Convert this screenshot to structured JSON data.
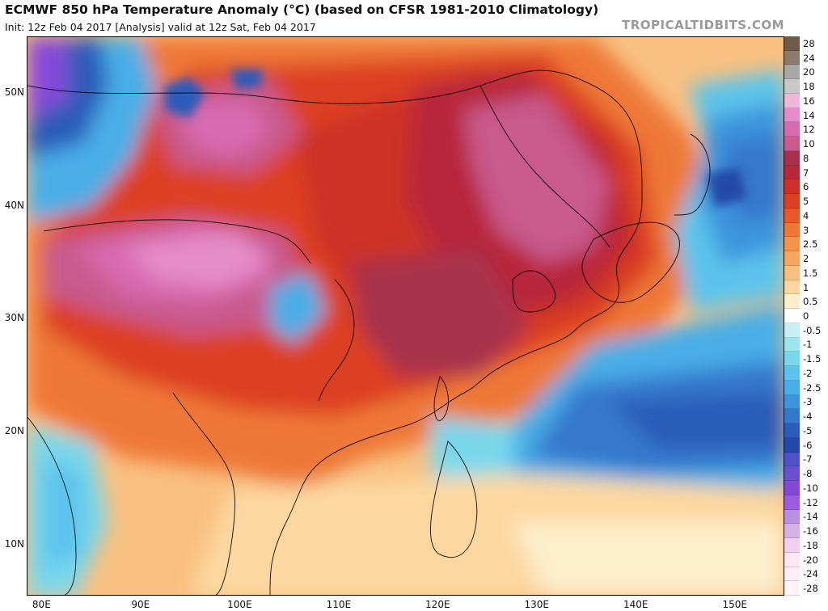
{
  "header": {
    "title": "ECMWF 850 hPa Temperature Anomaly (°C) (based on CFSR 1981-2010 Climatology)",
    "subtitle": "Init: 12z Feb 04 2017   [Analysis]   valid at 12z Sat, Feb 04 2017",
    "brand": "TROPICALTIDBITS.COM"
  },
  "axes": {
    "lat_labels": [
      {
        "text": "50N",
        "lat": 50
      },
      {
        "text": "40N",
        "lat": 40
      },
      {
        "text": "30N",
        "lat": 30
      },
      {
        "text": "20N",
        "lat": 20
      },
      {
        "text": "10N",
        "lat": 10
      }
    ],
    "lon_labels": [
      {
        "text": "80E",
        "lon": 80
      },
      {
        "text": "90E",
        "lon": 90
      },
      {
        "text": "100E",
        "lon": 100
      },
      {
        "text": "110E",
        "lon": 110
      },
      {
        "text": "120E",
        "lon": 120
      },
      {
        "text": "130E",
        "lon": 130
      },
      {
        "text": "140E",
        "lon": 140
      },
      {
        "text": "150E",
        "lon": 150
      }
    ]
  },
  "colorbar": {
    "levels": [
      "28",
      "24",
      "20",
      "18",
      "16",
      "14",
      "12",
      "10",
      "8",
      "7",
      "6",
      "5",
      "4",
      "3",
      "2.5",
      "2",
      "1.5",
      "1",
      "0.5",
      "0",
      "-0.5",
      "-1",
      "-1.5",
      "-2",
      "-2.5",
      "-3",
      "-4",
      "-5",
      "-6",
      "-7",
      "-8",
      "-10",
      "-12",
      "-14",
      "-16",
      "-18",
      "-20",
      "-24",
      "-28"
    ],
    "colors": [
      "#6e5a48",
      "#8c7a6a",
      "#a8a8a8",
      "#c8c8c8",
      "#f0b8d8",
      "#e68cc8",
      "#d86ab0",
      "#c85a8c",
      "#a8304c",
      "#b8283a",
      "#cc3028",
      "#dc4024",
      "#e8582a",
      "#ee7838",
      "#f4944c",
      "#f6a862",
      "#f8c080",
      "#fcd8a0",
      "#fdeecc",
      "#ffffff",
      "#c8f0f4",
      "#9ce6ee",
      "#7ad8ec",
      "#5cc4ec",
      "#48aee6",
      "#3c94dc",
      "#3478cc",
      "#2c5cba",
      "#2448a8",
      "#5050c8",
      "#6a50d0",
      "#8448d8",
      "#9c5ee0",
      "#b890e0",
      "#d8b0e8",
      "#f0d0f0",
      "#ffe8f4",
      "#ffeef6",
      "#fff4fa"
    ]
  },
  "map": {
    "region": "East Asia",
    "lon_range": [
      78.5,
      155
    ],
    "lat_range": [
      5.5,
      55
    ],
    "field": "850 hPa temperature anomaly"
  }
}
